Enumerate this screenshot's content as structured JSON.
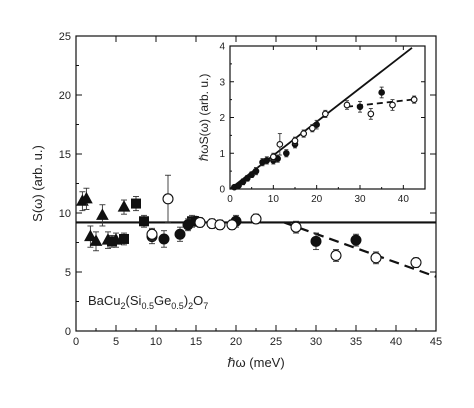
{
  "chart_data": [
    {
      "type": "scatter",
      "xlabel": "ℏω (meV)",
      "ylabel": "S(ω)  (arb. u.)",
      "xlim": [
        0,
        45
      ],
      "ylim": [
        0,
        25
      ],
      "xticks": [
        "0",
        "5",
        "10",
        "15",
        "20",
        "25",
        "30",
        "35",
        "40",
        "45"
      ],
      "yticks": [
        "0",
        "5",
        "10",
        "15",
        "20",
        "25"
      ],
      "grid": false,
      "annotation": {
        "main": "BaCu",
        "sub1": "2",
        "mid1": "(Si",
        "sub2": "0.5",
        "mid2": "Ge",
        "sub3": "0.5",
        "mid3": ")",
        "sub4": "2",
        "mid4": "O",
        "sub5": "7"
      },
      "series": [
        {
          "marker": "triangle-filled",
          "x": [
            0.8,
            1.3,
            1.8,
            2.5,
            3.3,
            4.0,
            5.0,
            6.0
          ],
          "y": [
            11.0,
            11.2,
            8.0,
            7.6,
            9.8,
            7.7,
            7.7,
            10.5
          ],
          "err": [
            0.8,
            0.9,
            0.9,
            0.8,
            0.9,
            0.7,
            0.6,
            0.6
          ]
        },
        {
          "marker": "square-filled",
          "x": [
            4.5,
            6.0,
            7.5,
            8.5,
            14.5
          ],
          "y": [
            7.6,
            7.8,
            10.8,
            9.3,
            9.3
          ],
          "err": [
            0.5,
            0.5,
            0.6,
            0.5,
            0.5
          ]
        },
        {
          "marker": "circle-filled",
          "x": [
            9.5,
            11.0,
            13.0,
            14.0,
            15.0,
            20.0,
            30.0,
            35.0
          ],
          "y": [
            8.0,
            7.8,
            8.2,
            9.0,
            9.3,
            9.3,
            7.6,
            7.7
          ],
          "err": [
            0.6,
            0.7,
            0.6,
            0.5,
            0.4,
            0.5,
            0.7,
            0.5
          ]
        },
        {
          "marker": "circle-open",
          "x": [
            9.5,
            11.5,
            15.5,
            17.0,
            18.0,
            19.5,
            22.5,
            27.5,
            32.5,
            37.5,
            42.5
          ],
          "y": [
            8.2,
            11.2,
            9.2,
            9.1,
            9.0,
            9.0,
            9.5,
            8.8,
            6.4,
            6.2,
            5.8
          ],
          "err": [
            0.5,
            2.0,
            0.4,
            0.4,
            0.4,
            0.4,
            0.4,
            0.5,
            0.5,
            0.5,
            0.4
          ]
        }
      ],
      "lines": [
        {
          "style": "solid",
          "x": [
            0,
            45
          ],
          "y": [
            9.2,
            9.2
          ]
        },
        {
          "style": "dashed",
          "x": [
            26,
            45
          ],
          "y": [
            9.2,
            4.6
          ]
        }
      ]
    },
    {
      "type": "scatter",
      "xlabel": "",
      "ylabel": "ℏωS(ω) (arb. u.)",
      "xlim": [
        0,
        45
      ],
      "ylim": [
        0,
        4
      ],
      "xticks": [
        "0",
        "10",
        "20",
        "30",
        "40"
      ],
      "yticks": [
        "0",
        "1",
        "2",
        "3",
        "4"
      ],
      "series": [
        {
          "marker": "filled",
          "x": [
            1,
            2,
            3,
            4,
            5,
            6,
            7.5,
            8.5,
            10,
            11,
            13,
            15,
            20,
            30,
            35
          ],
          "y": [
            0.05,
            0.1,
            0.2,
            0.3,
            0.4,
            0.5,
            0.75,
            0.8,
            0.8,
            0.85,
            1.0,
            1.25,
            1.8,
            2.3,
            2.7
          ],
          "err": [
            0.05,
            0.05,
            0.08,
            0.08,
            0.08,
            0.1,
            0.1,
            0.1,
            0.1,
            0.1,
            0.1,
            0.1,
            0.12,
            0.15,
            0.15
          ]
        },
        {
          "marker": "open",
          "x": [
            10,
            11.5,
            15,
            17,
            19,
            22,
            27,
            32.5,
            37.5,
            42.5
          ],
          "y": [
            0.9,
            1.25,
            1.35,
            1.55,
            1.7,
            2.1,
            2.35,
            2.1,
            2.35,
            2.5
          ],
          "err": [
            0.1,
            0.3,
            0.1,
            0.1,
            0.1,
            0.1,
            0.12,
            0.15,
            0.15,
            0.1
          ]
        }
      ],
      "lines": [
        {
          "style": "solid",
          "x": [
            0,
            42
          ],
          "y": [
            0,
            3.95
          ]
        },
        {
          "style": "dashed",
          "x": [
            27,
            42
          ],
          "y": [
            2.3,
            2.5
          ]
        }
      ]
    }
  ]
}
